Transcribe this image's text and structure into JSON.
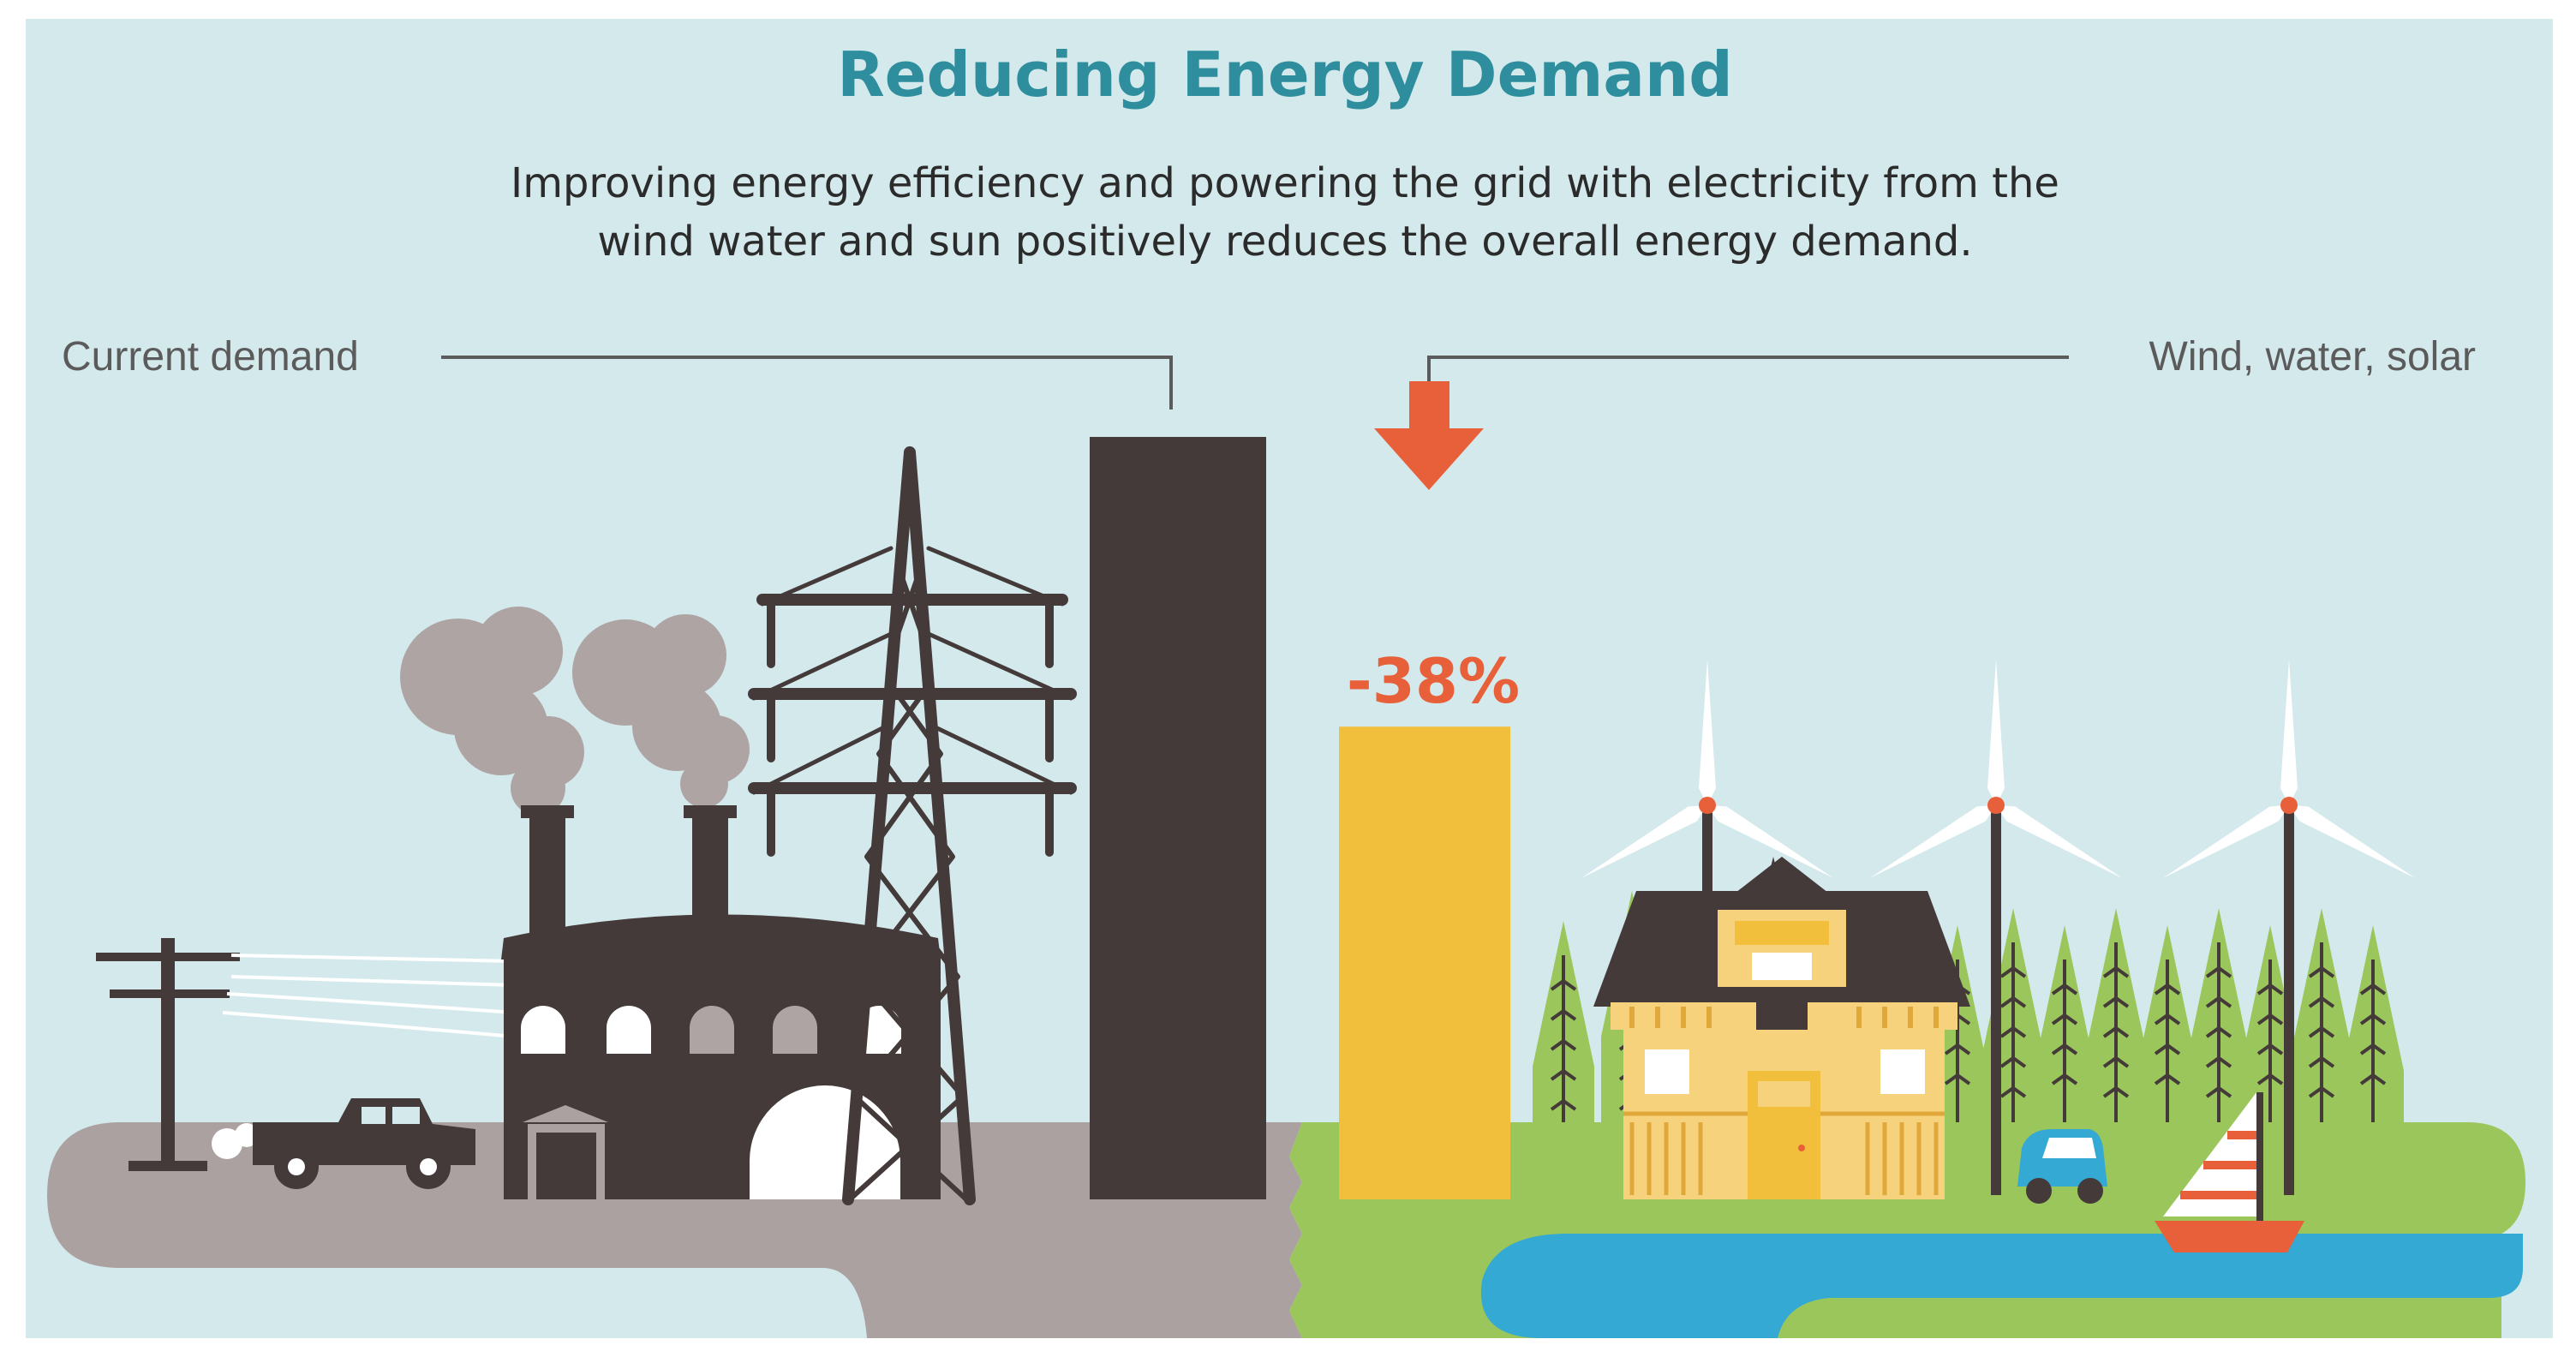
{
  "title": "Reducing Energy Demand",
  "subtitle_lines": [
    "Improving energy efficiency and powering the grid with electricity from the",
    "wind water and sun positively reduces the overall energy demand."
  ],
  "colors": {
    "background": "#D4E9EC",
    "title": "#2E8E9E",
    "text": "#2B2B2B",
    "label": "#5B5B5B",
    "dark": "#443A3A",
    "smoke": "#AEA4A4",
    "ground_left": "#ACA1A1",
    "ground_right": "#9AC65B",
    "water": "#33A9D3",
    "arrow": "#E8603A",
    "bar_new": "#F2BF3C",
    "tree": "#9AC65B",
    "house": "#F6D27C"
  },
  "icons": [
    "power-pole-icon",
    "pickup-truck-icon",
    "factory-icon",
    "transmission-tower-icon",
    "down-arrow-icon",
    "wind-turbine-icon",
    "house-icon",
    "tree-icon",
    "electric-car-icon",
    "sailboat-icon"
  ],
  "chart_data": {
    "type": "bar",
    "categories": [
      "Current demand",
      "Wind, water, solar"
    ],
    "values": [
      100,
      62
    ],
    "annotation": "-38%",
    "ylim": [
      0,
      100
    ]
  }
}
